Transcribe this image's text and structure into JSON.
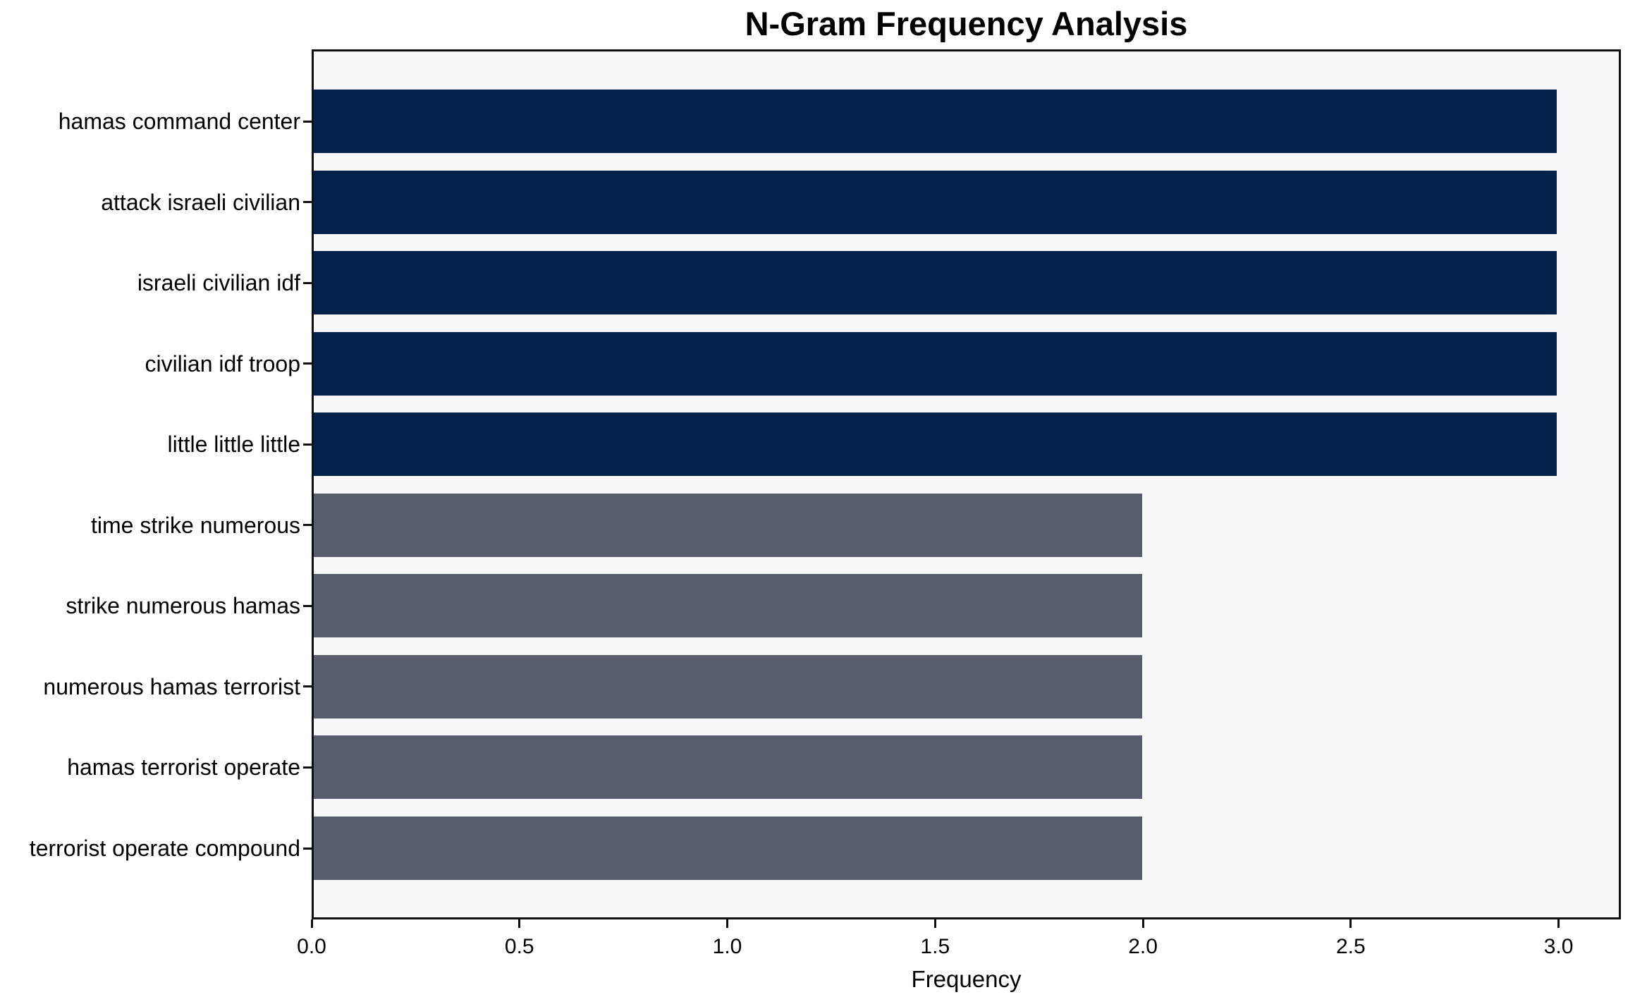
{
  "chart_data": {
    "type": "bar",
    "orientation": "horizontal",
    "title": "N-Gram Frequency Analysis",
    "xlabel": "Frequency",
    "ylabel": "",
    "categories": [
      "hamas command center",
      "attack israeli civilian",
      "israeli civilian idf",
      "civilian idf troop",
      "little little little",
      "time strike numerous",
      "strike numerous hamas",
      "numerous hamas terrorist",
      "hamas terrorist operate",
      "terrorist operate compound"
    ],
    "values": [
      3,
      3,
      3,
      3,
      3,
      2,
      2,
      2,
      2,
      2
    ],
    "bar_colors": [
      "#03234c",
      "#03234c",
      "#03234c",
      "#03234c",
      "#03234c",
      "#575d6c",
      "#575d6c",
      "#575d6c",
      "#575d6c",
      "#575d6c"
    ],
    "xlim": [
      0,
      3.15
    ],
    "xticks": [
      0.0,
      0.5,
      1.0,
      1.5,
      2.0,
      2.5,
      3.0
    ],
    "xtick_labels": [
      "0.0",
      "0.5",
      "1.0",
      "1.5",
      "2.0",
      "2.5",
      "3.0"
    ],
    "grid": false,
    "legend": null,
    "plot_background": "#f8f8fa",
    "figure_background": "#ffffff",
    "spine_color": "#0f0f0f"
  }
}
